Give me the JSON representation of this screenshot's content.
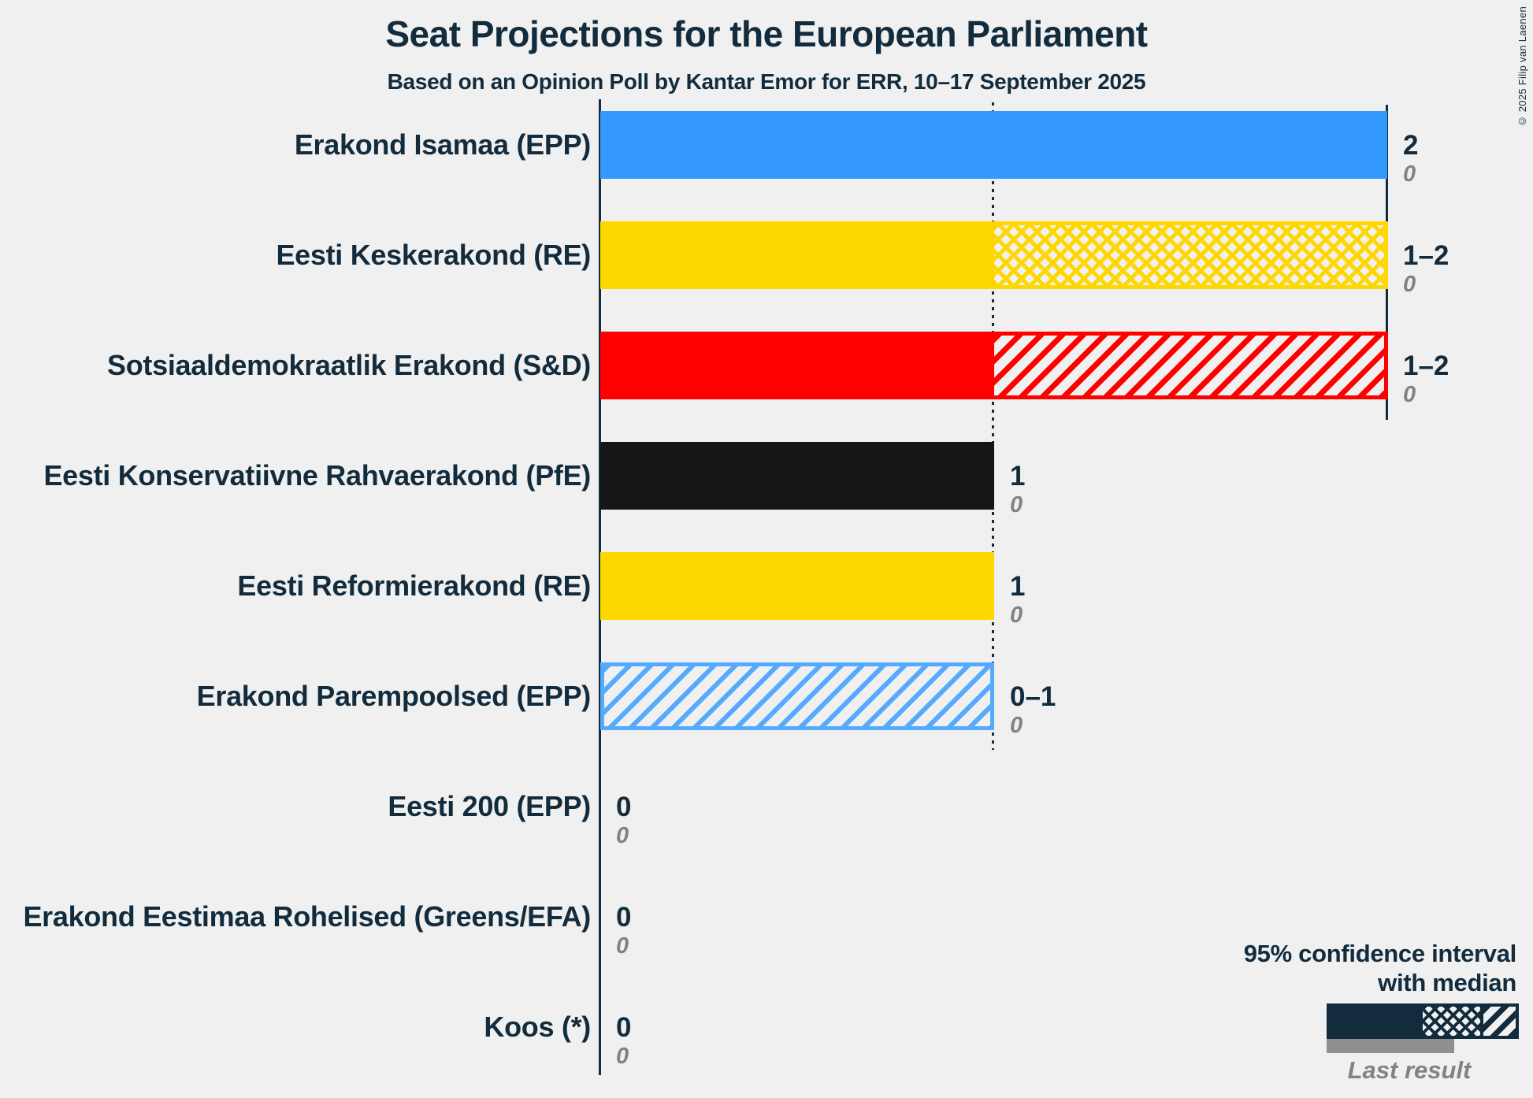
{
  "header": {
    "title": "Seat Projections for the European Parliament",
    "subtitle": "Based on an Opinion Poll by Kantar Emor for ERR, 10–17 September 2025"
  },
  "copyright": "© 2025 Filip van Laenen",
  "colors": {
    "background": "#F0F0F0",
    "text": "#122B3D",
    "axis": "#122B3D",
    "gray_text": "#828282",
    "last_result_bar": "#8F8F8F"
  },
  "legend": {
    "line1": "95% confidence interval",
    "line2": "with median",
    "last_result": "Last result"
  },
  "chart_data": {
    "type": "bar",
    "orientation": "horizontal",
    "title": "Seat Projections for the European Parliament",
    "subtitle": "Based on an Opinion Poll by Kantar Emor for ERR, 10–17 September 2025",
    "x_axis": {
      "min": 0,
      "max": 2,
      "unit": "seats",
      "gridlines": [
        0,
        1,
        2
      ],
      "gridline_styles": [
        "solid",
        "dotted",
        "solid"
      ]
    },
    "parties": [
      {
        "label": "Erakond Isamaa (EPP)",
        "ci_low": 2,
        "ci_high": 2,
        "projection_label": "2",
        "last_result": "0",
        "color": "#3399FF",
        "pattern": "solid"
      },
      {
        "label": "Eesti Keskerakond (RE)",
        "ci_low": 1,
        "ci_high": 2,
        "projection_label": "1–2",
        "last_result": "0",
        "color": "#FFD700",
        "pattern": "crosshatch"
      },
      {
        "label": "Sotsiaaldemokraatlik Erakond (S&D)",
        "ci_low": 1,
        "ci_high": 2,
        "projection_label": "1–2",
        "last_result": "0",
        "color": "#FF0000",
        "pattern": "diagonal"
      },
      {
        "label": "Eesti Konservatiivne Rahvaerakond (PfE)",
        "ci_low": 1,
        "ci_high": 1,
        "projection_label": "1",
        "last_result": "0",
        "color": "#161616",
        "pattern": "solid"
      },
      {
        "label": "Eesti Reformierakond (RE)",
        "ci_low": 1,
        "ci_high": 1,
        "projection_label": "1",
        "last_result": "0",
        "color": "#FFD700",
        "pattern": "solid"
      },
      {
        "label": "Erakond Parempoolsed (EPP)",
        "ci_low": 0,
        "ci_high": 1,
        "projection_label": "0–1",
        "last_result": "0",
        "color": "#55AAFF",
        "pattern": "diagonal-outline"
      },
      {
        "label": "Eesti 200 (EPP)",
        "ci_low": 0,
        "ci_high": 0,
        "projection_label": "0",
        "last_result": "0",
        "color": null,
        "pattern": "none"
      },
      {
        "label": "Erakond Eestimaa Rohelised (Greens/EFA)",
        "ci_low": 0,
        "ci_high": 0,
        "projection_label": "0",
        "last_result": "0",
        "color": null,
        "pattern": "none"
      },
      {
        "label": "Koos (*)",
        "ci_low": 0,
        "ci_high": 0,
        "projection_label": "0",
        "last_result": "0",
        "color": null,
        "pattern": "none"
      }
    ]
  }
}
